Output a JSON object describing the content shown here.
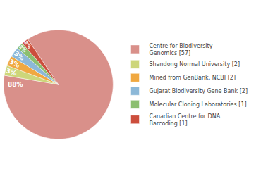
{
  "chart_data": {
    "type": "pie",
    "categories": [
      "Centre for Biodiversity\nGenomics [57]",
      "Shandong Normal University [2]",
      "Mined from GenBank, NCBI [2]",
      "Gujarat Biodiversity Gene Bank [2]",
      "Molecular Cloning Laboratories [1]",
      "Canadian Centre for DNA\nBarcoding [1]"
    ],
    "values": [
      88,
      3,
      3,
      3,
      2,
      2
    ],
    "value_labels": [
      "88%",
      "3%",
      "3%",
      "3%",
      "2%",
      "2%"
    ],
    "colors": [
      "#d9908a",
      "#cdd67a",
      "#f0a840",
      "#8cb8d8",
      "#8cbf70",
      "#cc4e3c"
    ],
    "data_labels": true,
    "legend": "right"
  }
}
